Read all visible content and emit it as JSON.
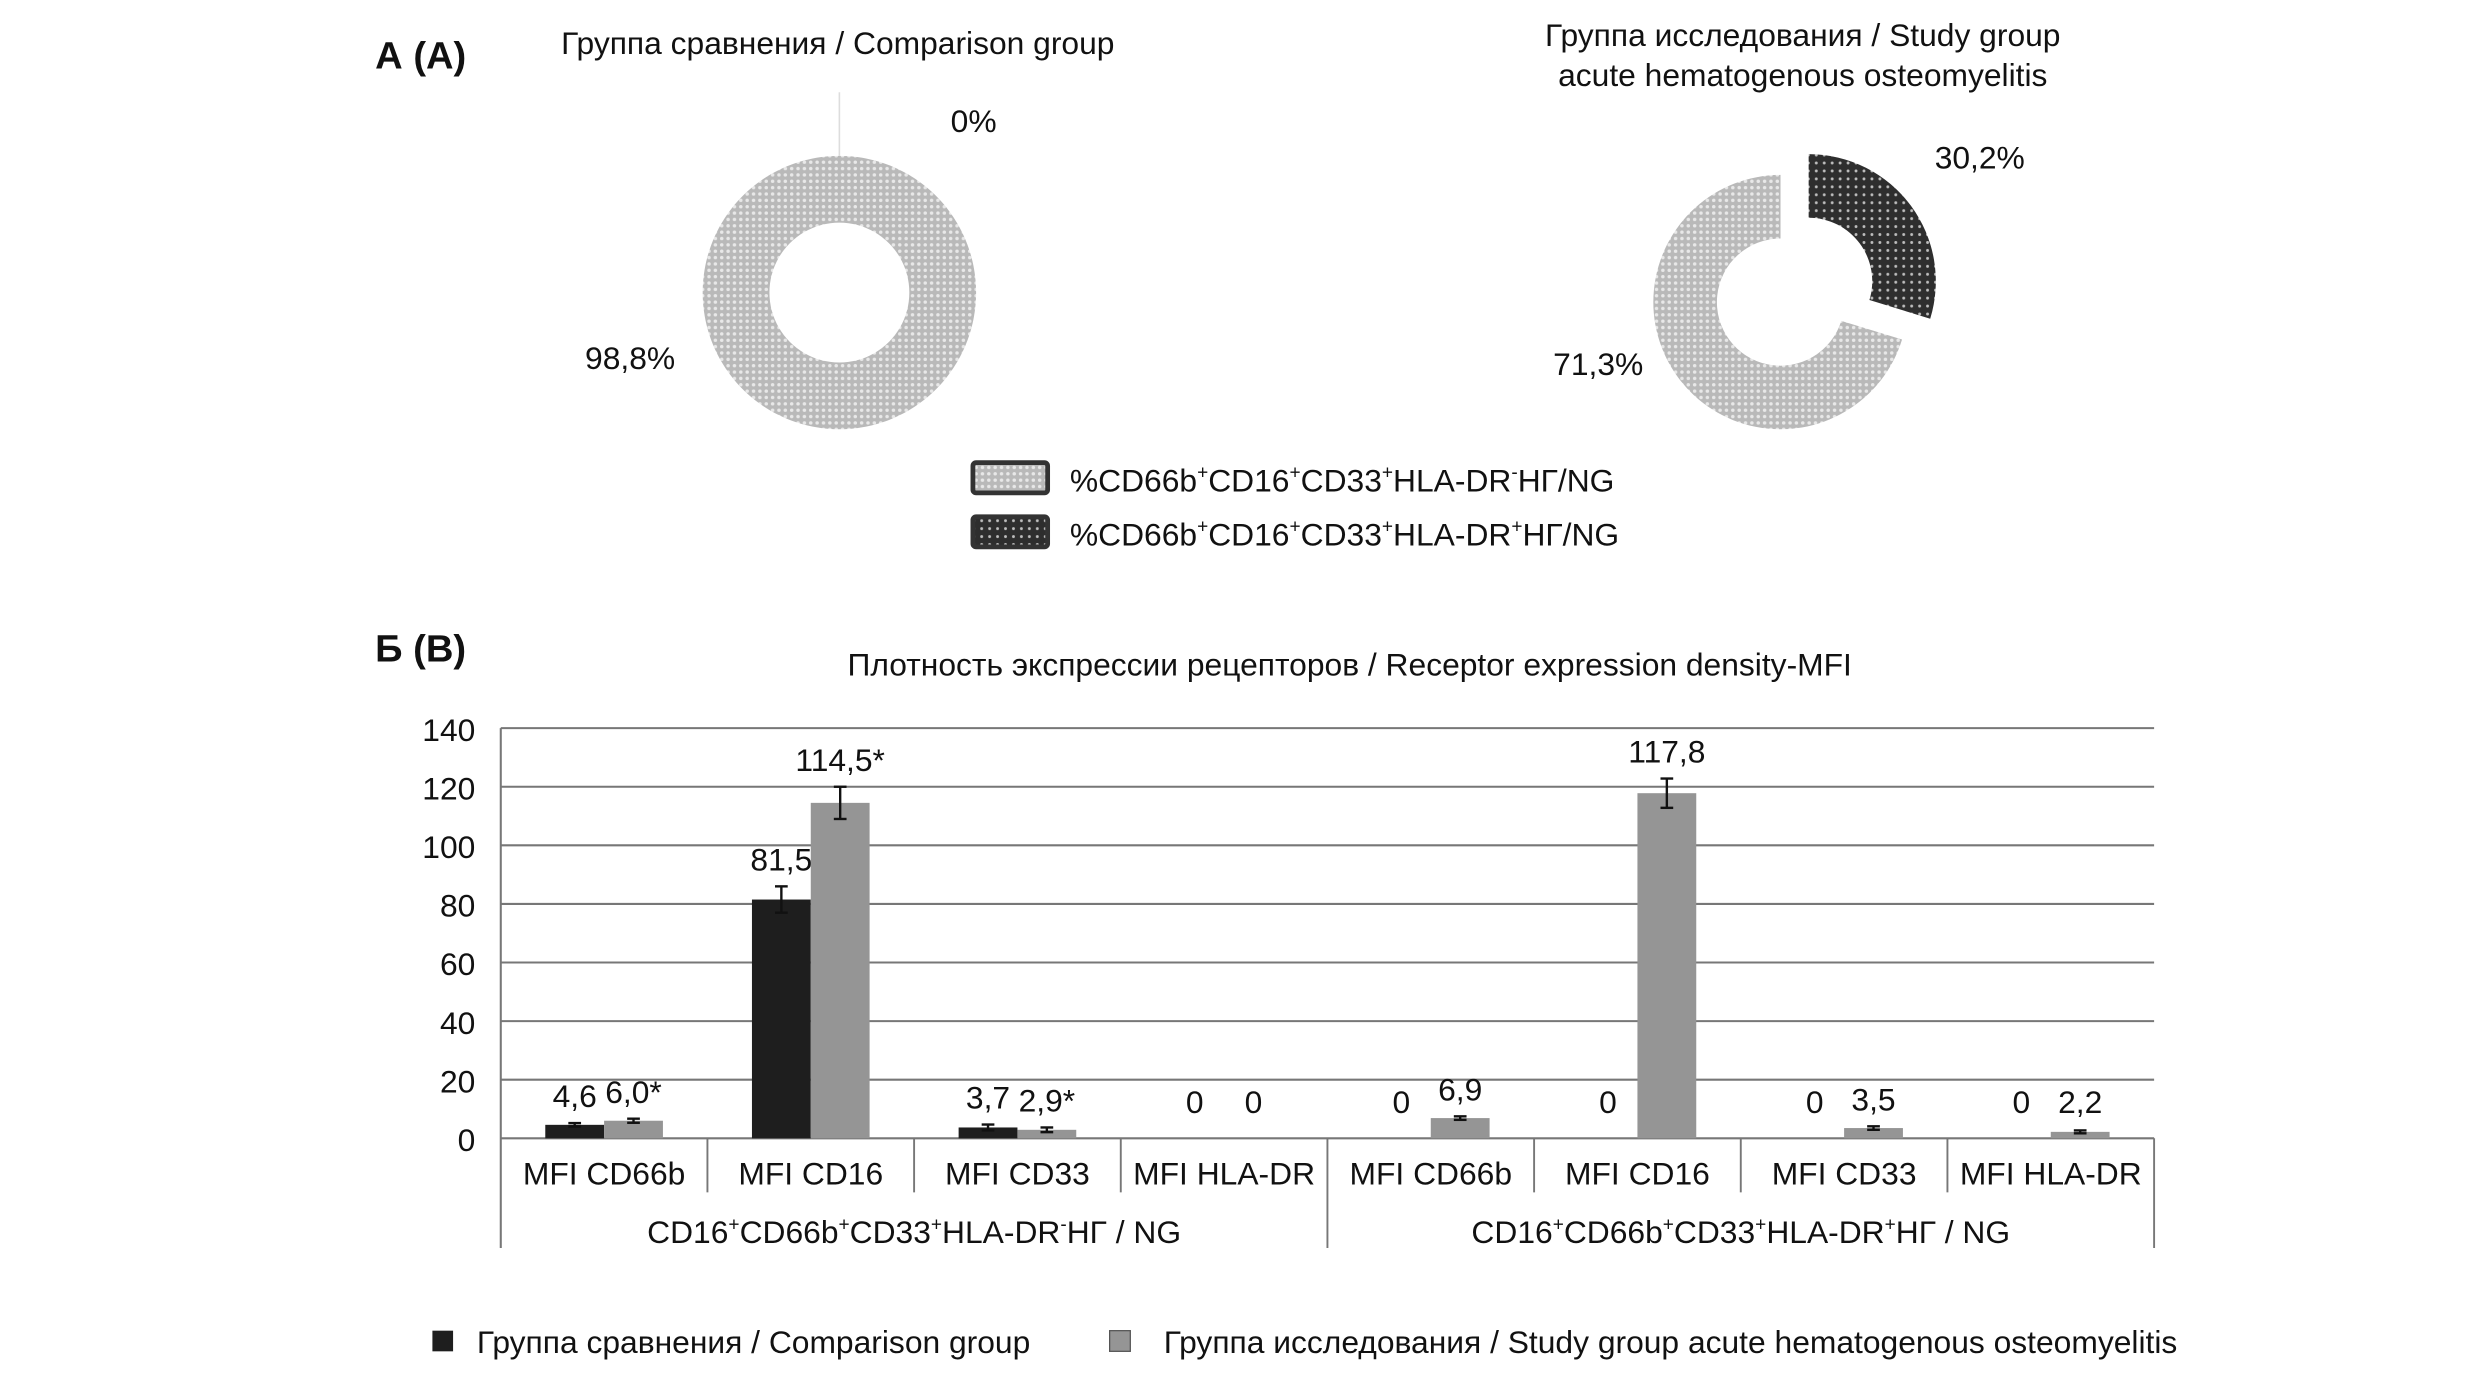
{
  "panel_a": {
    "label": "А (A)",
    "left_title": "Группа сравнения / Comparison group",
    "right_title_1": "Группа исследования / Study group",
    "right_title_2": "acute hematogenous osteomyelitis",
    "legend": [
      {
        "parts": [
          [
            "%CD66b",
            ""
          ],
          [
            "+",
            "sup"
          ],
          [
            "CD16",
            ""
          ],
          [
            "+",
            "sup"
          ],
          [
            "CD33",
            ""
          ],
          [
            "+",
            "sup"
          ],
          [
            "HLA-DR",
            ""
          ],
          [
            "-",
            "sup"
          ],
          [
            "НГ/NG",
            ""
          ]
        ],
        "fill": "light"
      },
      {
        "parts": [
          [
            "%CD66b",
            ""
          ],
          [
            "+",
            "sup"
          ],
          [
            "CD16",
            ""
          ],
          [
            "+",
            "sup"
          ],
          [
            "CD33",
            ""
          ],
          [
            "+",
            "sup"
          ],
          [
            "HLA-DR",
            ""
          ],
          [
            "+",
            "sup"
          ],
          [
            "НГ/NG",
            ""
          ]
        ],
        "fill": "dark"
      }
    ]
  },
  "panel_b": {
    "label": "Б (B)",
    "legend": [
      {
        "label": "Группа сравнения / Comparison group",
        "color": "#1e1e1e"
      },
      {
        "label": "Группа исследования / Study group acute hematogenous osteomyelitis",
        "color": "#959595"
      }
    ]
  },
  "chart_data": [
    {
      "type": "pie",
      "variant": "donut",
      "title": "Группа сравнения / Comparison group",
      "slices": [
        {
          "name": "HLA-DR- NG",
          "value": 98.8,
          "label": "98,8%"
        },
        {
          "name": "HLA-DR+ NG",
          "value": 0,
          "label": "0%"
        }
      ]
    },
    {
      "type": "pie",
      "variant": "donut",
      "title": "Группа исследования / Study group acute hematogenous osteomyelitis",
      "slices": [
        {
          "name": "HLA-DR- NG",
          "value": 71.3,
          "label": "71,3%"
        },
        {
          "name": "HLA-DR+ NG",
          "value": 30.2,
          "label": "30,2%",
          "exploded": true
        }
      ]
    },
    {
      "type": "bar",
      "title": "Плотность экспрессии рецепторов / Receptor expression density-MFI",
      "ylim": [
        0,
        140
      ],
      "yticks": [
        "0",
        "20",
        "40",
        "60",
        "80",
        "100",
        "120",
        "140"
      ],
      "grid": true,
      "categories": [
        "MFI CD66b",
        "MFI CD16",
        "MFI CD33",
        "MFI HLA-DR",
        "MFI CD66b",
        "MFI CD16",
        "MFI CD33",
        "MFI HLA-DR"
      ],
      "groups": [
        {
          "parts": [
            [
              "CD16",
              ""
            ],
            [
              "+",
              "sup"
            ],
            [
              "CD66b",
              ""
            ],
            [
              "+",
              "sup"
            ],
            [
              "CD33",
              ""
            ],
            [
              "+",
              "sup"
            ],
            [
              "HLA-DR",
              ""
            ],
            [
              "-",
              "sup"
            ],
            [
              "НГ / NG",
              ""
            ]
          ]
        },
        {
          "parts": [
            [
              "CD16",
              ""
            ],
            [
              "+",
              "sup"
            ],
            [
              "CD66b",
              ""
            ],
            [
              "+",
              "sup"
            ],
            [
              "CD33",
              ""
            ],
            [
              "+",
              "sup"
            ],
            [
              "HLA-DR",
              ""
            ],
            [
              "+",
              "sup"
            ],
            [
              "НГ / NG",
              ""
            ]
          ]
        }
      ],
      "series": [
        {
          "name": "Группа сравнения / Comparison group",
          "color": "#1e1e1e",
          "values": [
            4.6,
            81.5,
            3.7,
            0,
            0,
            0,
            0,
            0
          ],
          "errors": [
            0.6,
            4.5,
            1.0,
            0,
            0,
            0,
            0,
            0
          ],
          "labels": [
            "4,6",
            "81,5",
            "3,7",
            "0",
            "0",
            "0",
            "0",
            "0"
          ]
        },
        {
          "name": "Группа исследования / Study group acute hematogenous osteomyelitis",
          "color": "#959595",
          "values": [
            6.0,
            114.5,
            2.9,
            0,
            6.9,
            117.8,
            3.5,
            2.2
          ],
          "errors": [
            0.7,
            5.5,
            0.8,
            0,
            0.6,
            5.0,
            0.6,
            0.5
          ],
          "labels": [
            "6,0*",
            "114,5*",
            "2,9*",
            "0",
            "6,9",
            "117,8",
            "3,5",
            "2,2"
          ]
        }
      ]
    }
  ]
}
